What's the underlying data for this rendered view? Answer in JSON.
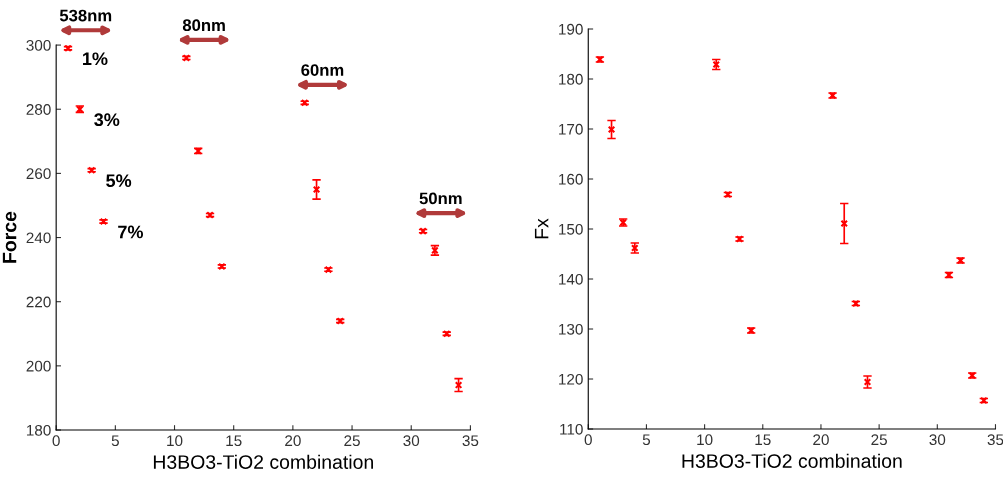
{
  "chart_data": [
    {
      "type": "scatter",
      "xlabel": "H3BO3-TiO2 combination",
      "ylabel": "Force",
      "xlim": [
        0,
        35
      ],
      "xticks": [
        0,
        5,
        10,
        15,
        20,
        25,
        30,
        35
      ],
      "ylim": [
        180,
        300
      ],
      "yticks": [
        180,
        200,
        220,
        240,
        260,
        280,
        300
      ],
      "grid": false,
      "legend": false,
      "marker": "cross",
      "x": [
        1,
        2,
        3,
        4,
        11,
        12,
        13,
        14,
        21,
        22,
        23,
        24,
        31,
        32,
        33,
        34
      ],
      "series": [
        {
          "color": "#ff0000",
          "values": [
            299,
            280,
            261,
            245,
            296,
            267,
            247,
            231,
            282,
            255,
            230,
            214,
            242,
            236,
            210,
            194
          ],
          "errors": [
            0.5,
            1,
            0.5,
            0.5,
            0.5,
            0.8,
            0.5,
            0.5,
            0.5,
            3,
            0.5,
            0.5,
            0.5,
            1.5,
            0.5,
            2
          ]
        }
      ],
      "annotations": [
        {
          "text": "1%",
          "x": 1,
          "y": 299
        },
        {
          "text": "3%",
          "x": 2,
          "y": 280
        },
        {
          "text": "5%",
          "x": 3,
          "y": 261
        },
        {
          "text": "7%",
          "x": 4,
          "y": 245
        },
        "538nm",
        "80nm",
        "60nm",
        "50nm"
      ]
    },
    {
      "type": "scatter",
      "xlabel": "H3BO3-TiO2 combination",
      "ylabel": "Fx",
      "xlim": [
        0,
        35
      ],
      "xticks": [
        0,
        5,
        10,
        15,
        20,
        25,
        30,
        35
      ],
      "ylim": [
        110,
        190
      ],
      "yticks": [
        110,
        120,
        130,
        140,
        150,
        160,
        170,
        180,
        190
      ],
      "grid": false,
      "legend": false,
      "marker": "cross",
      "x": [
        1,
        2,
        3,
        4,
        11,
        12,
        13,
        14,
        21,
        22,
        23,
        24,
        31,
        32,
        33,
        34
      ],
      "series": [
        {
          "color": "#ff0000",
          "values": [
            183.9,
            169.9,
            151.3,
            146.2,
            182.9,
            156.9,
            148,
            129.7,
            176.7,
            151.1,
            135.1,
            119.4,
            140.8,
            143.7,
            120.7,
            115.7
          ],
          "errors": [
            0.5,
            1.8,
            0.7,
            1,
            1,
            0.4,
            0.4,
            0.5,
            0.5,
            4,
            0.4,
            1.2,
            0.5,
            0.5,
            0.5,
            0.4
          ]
        }
      ]
    }
  ]
}
